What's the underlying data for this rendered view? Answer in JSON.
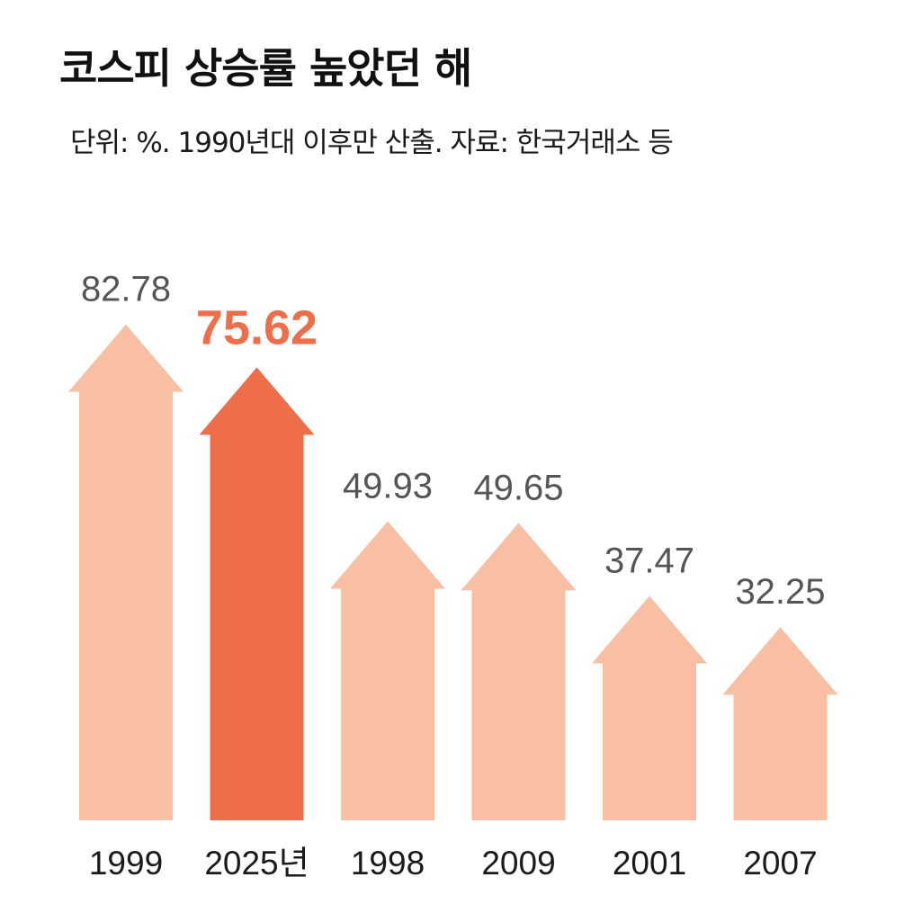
{
  "title": "코스피 상승률 높았던 해",
  "subtitle": "단위: %. 1990년대 이후만 산출. 자료: 한국거래소 등",
  "colors": {
    "bar": "#f8bfa2",
    "highlight": "#ee6e49",
    "value_text": "#555555",
    "category_text": "#1a1a1a"
  },
  "chart_data": {
    "type": "bar",
    "title": "코스피 상승률 높았던 해",
    "subtitle": "단위: %. 1990년대 이후만 산출. 자료: 한국거래소 등",
    "xlabel": "",
    "ylabel": "",
    "unit": "%",
    "grid": false,
    "categories": [
      "1999",
      "2025년",
      "1998",
      "2009",
      "2001",
      "2007"
    ],
    "values": [
      82.78,
      75.62,
      49.93,
      49.65,
      37.47,
      32.25
    ],
    "value_labels": [
      "82.78",
      "75.62",
      "49.93",
      "49.65",
      "37.47",
      "32.25"
    ],
    "highlight_index": 1
  }
}
